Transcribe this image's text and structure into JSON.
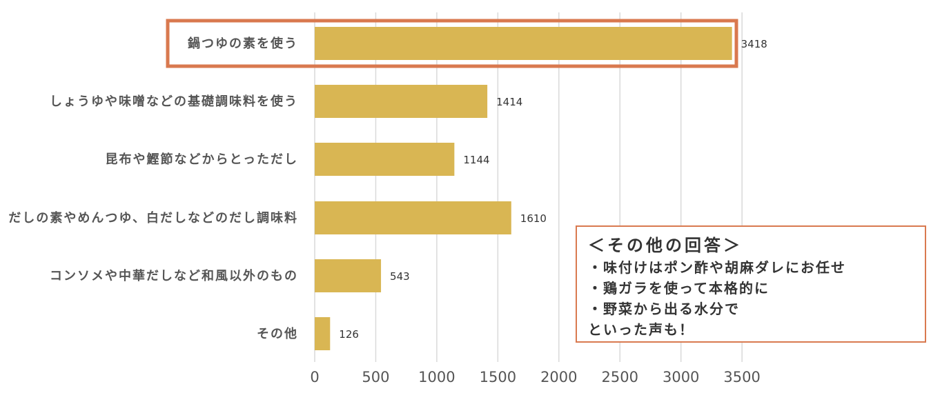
{
  "chart_data": {
    "type": "bar",
    "orientation": "horizontal",
    "categories": [
      "鍋つゆの素を使う",
      "しょうゆや味噌などの基礎調味料を使う",
      "昆布や鰹節などからとっただし",
      "だしの素やめんつゆ、白だしなどのだし調味料",
      "コンソメや中華だしなど和風以外のもの",
      "その他"
    ],
    "values": [
      3418,
      1414,
      1144,
      1610,
      543,
      126
    ],
    "xticks": [
      0,
      500,
      1000,
      1500,
      2000,
      2500,
      3000,
      3500
    ],
    "xlim": [
      0,
      3500
    ],
    "grid": true,
    "highlighted_category": "鍋つゆの素を使う",
    "colors": {
      "bar": "#d9b653",
      "highlight": "#d9794f",
      "grid": "#d9d9d9"
    }
  },
  "note": {
    "title": "＜その他の回答＞",
    "lines": [
      "・味付けはポン酢や胡麻ダレにお任せ",
      "・鶏ガラを使って本格的に",
      "・野菜から出る水分で",
      "といった声も！"
    ]
  }
}
